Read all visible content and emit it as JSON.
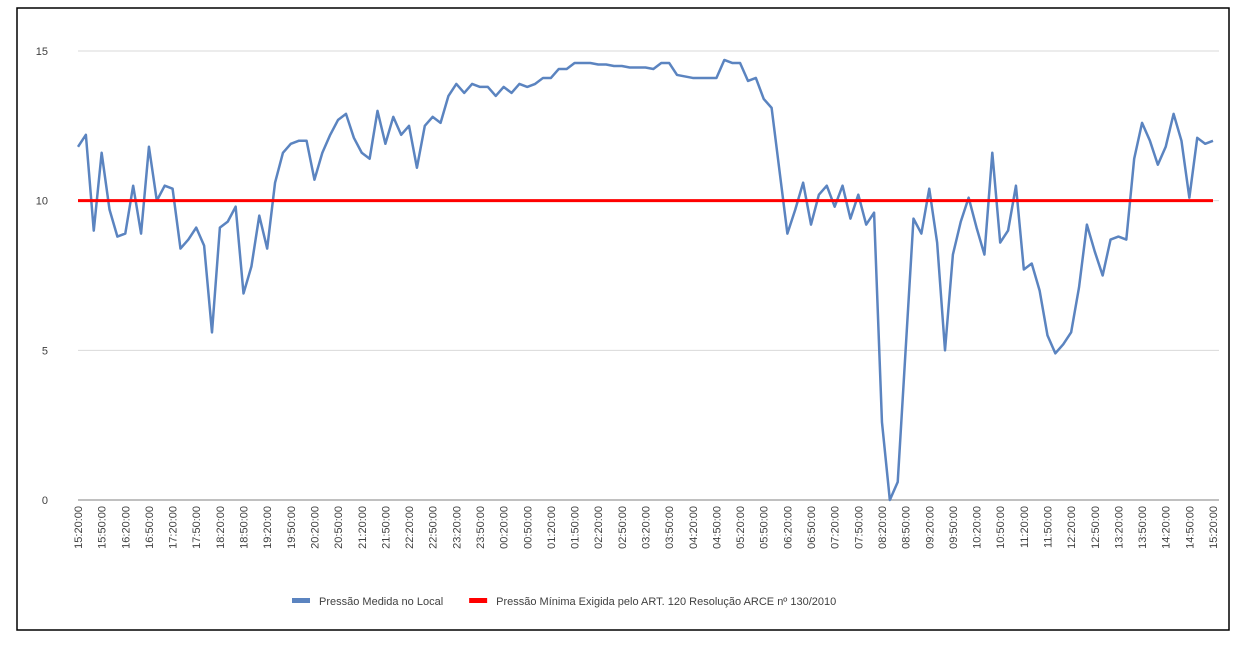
{
  "chart_data": {
    "type": "line",
    "categories": [
      "15:20:00",
      null,
      null,
      "15:50:00",
      null,
      null,
      "16:20:00",
      null,
      null,
      "16:50:00",
      null,
      null,
      "17:20:00",
      null,
      null,
      "17:50:00",
      null,
      null,
      "18:20:00",
      null,
      null,
      "18:50:00",
      null,
      null,
      "19:20:00",
      null,
      null,
      "19:50:00",
      null,
      null,
      "20:20:00",
      null,
      null,
      "20:50:00",
      null,
      null,
      "21:20:00",
      null,
      null,
      "21:50:00",
      null,
      null,
      "22:20:00",
      null,
      null,
      "22:50:00",
      null,
      null,
      "23:20:00",
      null,
      null,
      "23:50:00",
      null,
      null,
      "00:20:00",
      null,
      null,
      "00:50:00",
      null,
      null,
      "01:20:00",
      null,
      null,
      "01:50:00",
      null,
      null,
      "02:20:00",
      null,
      null,
      "02:50:00",
      null,
      null,
      "03:20:00",
      null,
      null,
      "03:50:00",
      null,
      null,
      "04:20:00",
      null,
      null,
      "04:50:00",
      null,
      null,
      "05:20:00",
      null,
      null,
      "05:50:00",
      null,
      null,
      "06:20:00",
      null,
      null,
      "06:50:00",
      null,
      null,
      "07:20:00",
      null,
      null,
      "07:50:00",
      null,
      null,
      "08:20:00",
      null,
      null,
      "08:50:00",
      null,
      null,
      "09:20:00",
      null,
      null,
      "09:50:00",
      null,
      null,
      "10:20:00",
      null,
      null,
      "10:50:00",
      null,
      null,
      "11:20:00",
      null,
      null,
      "11:50:00",
      null,
      null,
      "12:20:00",
      null,
      null,
      "12:50:00",
      null,
      null,
      "13:20:00",
      null,
      null,
      "13:50:00",
      null,
      null,
      "14:20:00",
      null,
      null,
      "14:50:00",
      null,
      null,
      "15:20:00"
    ],
    "series": [
      {
        "name": "Pressão Medida no Local",
        "color": "#5b84c0",
        "values": [
          11.8,
          12.2,
          9.0,
          11.6,
          9.7,
          8.8,
          8.9,
          10.5,
          8.9,
          11.8,
          10.0,
          10.5,
          10.4,
          8.4,
          8.7,
          9.1,
          8.5,
          5.6,
          9.1,
          9.3,
          9.8,
          6.9,
          7.8,
          9.5,
          8.4,
          10.6,
          11.6,
          11.9,
          12.0,
          12.0,
          10.7,
          11.6,
          12.2,
          12.7,
          12.9,
          12.1,
          11.6,
          11.4,
          13.0,
          11.9,
          12.8,
          12.2,
          12.5,
          11.1,
          12.5,
          12.8,
          12.6,
          13.5,
          13.9,
          13.6,
          13.9,
          13.8,
          13.8,
          13.5,
          13.8,
          13.6,
          13.9,
          13.8,
          13.9,
          14.1,
          14.1,
          14.4,
          14.4,
          14.6,
          14.6,
          14.6,
          14.55,
          14.55,
          14.5,
          14.5,
          14.45,
          14.45,
          14.45,
          14.4,
          14.6,
          14.6,
          14.2,
          14.15,
          14.1,
          14.1,
          14.1,
          14.1,
          14.7,
          14.6,
          14.6,
          14.0,
          14.1,
          13.4,
          13.1,
          11.0,
          8.9,
          9.7,
          10.6,
          9.2,
          10.2,
          10.5,
          9.8,
          10.5,
          9.4,
          10.2,
          9.2,
          9.6,
          2.6,
          0.0,
          0.6,
          5.0,
          9.4,
          8.9,
          10.4,
          8.6,
          5.0,
          8.2,
          9.3,
          10.1,
          9.1,
          8.2,
          11.6,
          8.6,
          9.0,
          10.5,
          7.7,
          7.9,
          7.0,
          5.5,
          4.9,
          5.2,
          5.6,
          7.1,
          9.2,
          8.3,
          7.5,
          8.7,
          8.8,
          8.7,
          11.4,
          12.6,
          12.0,
          11.2,
          11.8,
          12.9,
          12.0,
          10.1,
          12.1,
          11.9,
          12.0
        ]
      },
      {
        "name": "Pressão Mínima Exigida pelo ART. 120 Resolução ARCE nº 130/2010",
        "color": "#ff0000",
        "values": [
          10,
          10,
          10,
          10,
          10,
          10,
          10,
          10,
          10,
          10,
          10,
          10,
          10,
          10,
          10,
          10,
          10,
          10,
          10,
          10,
          10,
          10,
          10,
          10,
          10,
          10,
          10,
          10,
          10,
          10,
          10,
          10,
          10,
          10,
          10,
          10,
          10,
          10,
          10,
          10,
          10,
          10,
          10,
          10,
          10,
          10,
          10,
          10,
          10,
          10,
          10,
          10,
          10,
          10,
          10,
          10,
          10,
          10,
          10,
          10,
          10,
          10,
          10,
          10,
          10,
          10,
          10,
          10,
          10,
          10,
          10,
          10,
          10,
          10,
          10,
          10,
          10,
          10,
          10,
          10,
          10,
          10,
          10,
          10,
          10,
          10,
          10,
          10,
          10,
          10,
          10,
          10,
          10,
          10,
          10,
          10,
          10,
          10,
          10,
          10,
          10,
          10,
          10,
          10,
          10,
          10,
          10,
          10,
          10,
          10,
          10,
          10,
          10,
          10,
          10,
          10,
          10,
          10,
          10,
          10,
          10,
          10,
          10,
          10,
          10,
          10,
          10,
          10,
          10,
          10,
          10,
          10,
          10,
          10,
          10,
          10,
          10,
          10,
          10,
          10,
          10,
          10,
          10,
          10,
          10
        ]
      }
    ],
    "ylim": [
      0,
      15
    ],
    "yticks": [
      0,
      5,
      10,
      15
    ],
    "grid": true,
    "legend": "bottom"
  }
}
